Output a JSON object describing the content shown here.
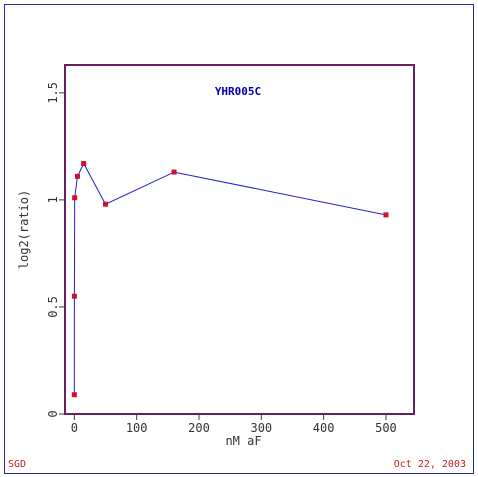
{
  "footer": {
    "source": "SGD",
    "date": "Oct 22, 2003"
  },
  "chart_data": {
    "type": "line",
    "title": "YHR005C",
    "xlabel": "nM aF",
    "ylabel": "log2(ratio)",
    "xlim": [
      -15,
      545
    ],
    "ylim": [
      0,
      1.63
    ],
    "xticks": [
      0,
      100,
      200,
      300,
      400,
      500
    ],
    "yticks": [
      0,
      0.5,
      1,
      1.5
    ],
    "ytick_labels": [
      "0",
      "0.5",
      "1",
      "1.5"
    ],
    "grid": false,
    "series": [
      {
        "color": "#1f1fcc",
        "marker_color": "#cc1133",
        "x": [
          0,
          0.1,
          0.5,
          5,
          15,
          50,
          160,
          500
        ],
        "y": [
          0.09,
          0.55,
          1.01,
          1.11,
          1.17,
          0.98,
          1.13,
          0.93
        ]
      }
    ],
    "colors": {
      "axes": "#6a1f5e",
      "title": "#0000aa",
      "text": "#333333"
    }
  }
}
